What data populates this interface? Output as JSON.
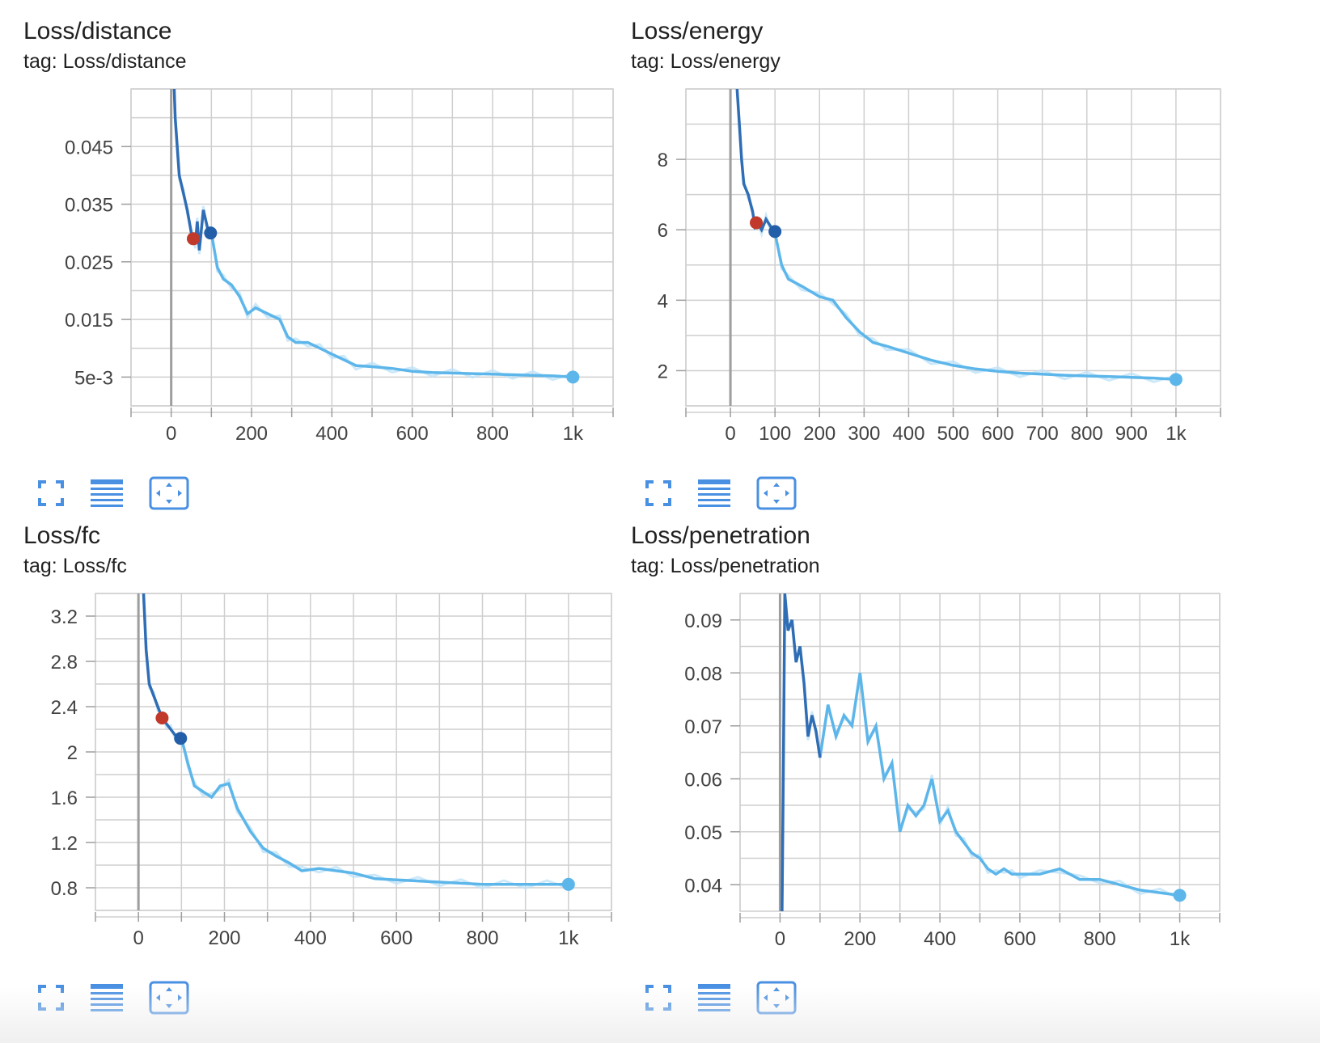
{
  "colors": {
    "smoothed_early": "#2f6db5",
    "smoothed_late": "#5db6ea",
    "raw": "#bfe2f7",
    "grid": "#cfcfcf",
    "axis": "#9e9e9e",
    "marker_red": "#c0392b",
    "marker_dark": "#225fa8",
    "toolbar": "#4a90e2"
  },
  "toolbar_icons": [
    "fullscreen-icon",
    "list-lines-icon",
    "fit-domain-icon"
  ],
  "charts": [
    {
      "title": "Loss/distance",
      "tag": "tag: Loss/distance"
    },
    {
      "title": "Loss/energy",
      "tag": "tag: Loss/energy"
    },
    {
      "title": "Loss/fc",
      "tag": "tag: Loss/fc"
    },
    {
      "title": "Loss/penetration",
      "tag": "tag: Loss/penetration"
    }
  ],
  "chart_data": [
    {
      "type": "line",
      "title": "Loss/distance",
      "xlabel": "",
      "ylabel": "",
      "xlim": [
        -100,
        1100
      ],
      "ylim": [
        0,
        0.055
      ],
      "xticks": [
        0,
        200,
        400,
        600,
        800,
        1000
      ],
      "xtick_labels": [
        "0",
        "200",
        "400",
        "600",
        "800",
        "1k"
      ],
      "yticks": [
        0.005,
        0.015,
        0.025,
        0.035,
        0.045
      ],
      "ytick_labels": [
        "5e-3",
        "0.015",
        "0.025",
        "0.035",
        "0.045"
      ],
      "grid": true,
      "series": [
        {
          "points": [
            [
              0,
              0.07
            ],
            [
              10,
              0.05
            ],
            [
              20,
              0.04
            ],
            [
              30,
              0.037
            ],
            [
              40,
              0.034
            ],
            [
              50,
              0.03
            ],
            [
              60,
              0.028
            ],
            [
              65,
              0.032
            ],
            [
              70,
              0.027
            ],
            [
              80,
              0.034
            ],
            [
              90,
              0.031
            ],
            [
              100,
              0.03
            ],
            [
              115,
              0.024
            ],
            [
              130,
              0.022
            ],
            [
              150,
              0.021
            ],
            [
              170,
              0.019
            ],
            [
              190,
              0.016
            ],
            [
              210,
              0.017
            ],
            [
              240,
              0.016
            ],
            [
              270,
              0.015
            ],
            [
              290,
              0.012
            ],
            [
              310,
              0.011
            ],
            [
              340,
              0.011
            ],
            [
              370,
              0.01
            ],
            [
              400,
              0.009
            ],
            [
              430,
              0.008
            ],
            [
              460,
              0.007
            ],
            [
              500,
              0.0068
            ],
            [
              550,
              0.0065
            ],
            [
              600,
              0.006
            ],
            [
              650,
              0.0058
            ],
            [
              700,
              0.0057
            ],
            [
              750,
              0.0056
            ],
            [
              800,
              0.0055
            ],
            [
              850,
              0.0054
            ],
            [
              900,
              0.0053
            ],
            [
              950,
              0.0052
            ],
            [
              1000,
              0.005
            ]
          ],
          "markers": [
            {
              "x": 55,
              "y": 0.029,
              "color": "red"
            },
            {
              "x": 98,
              "y": 0.03,
              "color": "dark"
            },
            {
              "x": 1000,
              "y": 0.005,
              "color": "light"
            }
          ]
        }
      ]
    },
    {
      "type": "line",
      "title": "Loss/energy",
      "xlabel": "",
      "ylabel": "",
      "xlim": [
        -100,
        1100
      ],
      "ylim": [
        1,
        10
      ],
      "xticks": [
        0,
        100,
        200,
        300,
        400,
        500,
        600,
        700,
        800,
        900,
        1000
      ],
      "xtick_labels": [
        "0",
        "100",
        "200",
        "300",
        "400",
        "500",
        "600",
        "700",
        "800",
        "900",
        "1k"
      ],
      "yticks": [
        2,
        4,
        6,
        8
      ],
      "ytick_labels": [
        "2",
        "4",
        "6",
        "8"
      ],
      "grid": true,
      "series": [
        {
          "points": [
            [
              15,
              10
            ],
            [
              20,
              9
            ],
            [
              25,
              8
            ],
            [
              30,
              7.3
            ],
            [
              40,
              7
            ],
            [
              50,
              6.5
            ],
            [
              55,
              6.1
            ],
            [
              60,
              6.2
            ],
            [
              70,
              6
            ],
            [
              80,
              6.3
            ],
            [
              90,
              6.1
            ],
            [
              100,
              5.9
            ],
            [
              115,
              5
            ],
            [
              130,
              4.6
            ],
            [
              160,
              4.4
            ],
            [
              200,
              4.1
            ],
            [
              230,
              4
            ],
            [
              260,
              3.5
            ],
            [
              290,
              3.1
            ],
            [
              320,
              2.8
            ],
            [
              350,
              2.7
            ],
            [
              400,
              2.5
            ],
            [
              450,
              2.3
            ],
            [
              500,
              2.15
            ],
            [
              550,
              2.05
            ],
            [
              600,
              1.98
            ],
            [
              650,
              1.93
            ],
            [
              700,
              1.9
            ],
            [
              750,
              1.87
            ],
            [
              800,
              1.85
            ],
            [
              850,
              1.83
            ],
            [
              900,
              1.81
            ],
            [
              950,
              1.79
            ],
            [
              1000,
              1.75
            ]
          ],
          "markers": [
            {
              "x": 58,
              "y": 6.2,
              "color": "red"
            },
            {
              "x": 100,
              "y": 5.95,
              "color": "dark"
            },
            {
              "x": 1000,
              "y": 1.75,
              "color": "light"
            }
          ]
        }
      ]
    },
    {
      "type": "line",
      "title": "Loss/fc",
      "xlabel": "",
      "ylabel": "",
      "xlim": [
        -100,
        1100
      ],
      "ylim": [
        0.6,
        3.4
      ],
      "xticks": [
        0,
        200,
        400,
        600,
        800,
        1000
      ],
      "xtick_labels": [
        "0",
        "200",
        "400",
        "600",
        "800",
        "1k"
      ],
      "yticks": [
        0.8,
        1.2,
        1.6,
        2,
        2.4,
        2.8,
        3.2
      ],
      "ytick_labels": [
        "0.8",
        "1.2",
        "1.6",
        "2",
        "2.4",
        "2.8",
        "3.2"
      ],
      "grid": true,
      "series": [
        {
          "points": [
            [
              12,
              3.4
            ],
            [
              18,
              2.9
            ],
            [
              25,
              2.6
            ],
            [
              35,
              2.5
            ],
            [
              45,
              2.4
            ],
            [
              55,
              2.3
            ],
            [
              65,
              2.25
            ],
            [
              75,
              2.2
            ],
            [
              85,
              2.15
            ],
            [
              100,
              2.12
            ],
            [
              115,
              1.9
            ],
            [
              130,
              1.7
            ],
            [
              150,
              1.65
            ],
            [
              170,
              1.6
            ],
            [
              190,
              1.7
            ],
            [
              210,
              1.72
            ],
            [
              230,
              1.5
            ],
            [
              260,
              1.3
            ],
            [
              290,
              1.15
            ],
            [
              320,
              1.08
            ],
            [
              350,
              1.02
            ],
            [
              380,
              0.95
            ],
            [
              420,
              0.97
            ],
            [
              460,
              0.95
            ],
            [
              500,
              0.93
            ],
            [
              550,
              0.88
            ],
            [
              600,
              0.87
            ],
            [
              650,
              0.86
            ],
            [
              700,
              0.85
            ],
            [
              750,
              0.84
            ],
            [
              800,
              0.83
            ],
            [
              850,
              0.83
            ],
            [
              900,
              0.83
            ],
            [
              950,
              0.83
            ],
            [
              1000,
              0.83
            ]
          ],
          "markers": [
            {
              "x": 55,
              "y": 2.3,
              "color": "red"
            },
            {
              "x": 98,
              "y": 2.12,
              "color": "dark"
            },
            {
              "x": 1000,
              "y": 0.83,
              "color": "light"
            }
          ]
        }
      ]
    },
    {
      "type": "line",
      "title": "Loss/penetration",
      "xlabel": "",
      "ylabel": "",
      "xlim": [
        -100,
        1100
      ],
      "ylim": [
        0.035,
        0.095
      ],
      "xticks": [
        0,
        200,
        400,
        600,
        800,
        1000
      ],
      "xtick_labels": [
        "0",
        "200",
        "400",
        "600",
        "800",
        "1k"
      ],
      "yticks": [
        0.04,
        0.05,
        0.06,
        0.07,
        0.08,
        0.09
      ],
      "ytick_labels": [
        "0.04",
        "0.05",
        "0.06",
        "0.07",
        "0.08",
        "0.09"
      ],
      "grid": true,
      "series": [
        {
          "points": [
            [
              5,
              0.035
            ],
            [
              8,
              0.06
            ],
            [
              12,
              0.095
            ],
            [
              20,
              0.088
            ],
            [
              30,
              0.09
            ],
            [
              40,
              0.082
            ],
            [
              50,
              0.085
            ],
            [
              60,
              0.078
            ],
            [
              70,
              0.068
            ],
            [
              80,
              0.072
            ],
            [
              90,
              0.069
            ],
            [
              100,
              0.064
            ],
            [
              120,
              0.074
            ],
            [
              140,
              0.068
            ],
            [
              160,
              0.072
            ],
            [
              180,
              0.07
            ],
            [
              200,
              0.08
            ],
            [
              220,
              0.067
            ],
            [
              240,
              0.07
            ],
            [
              260,
              0.06
            ],
            [
              280,
              0.063
            ],
            [
              300,
              0.05
            ],
            [
              320,
              0.055
            ],
            [
              340,
              0.053
            ],
            [
              360,
              0.055
            ],
            [
              380,
              0.06
            ],
            [
              400,
              0.052
            ],
            [
              420,
              0.054
            ],
            [
              440,
              0.05
            ],
            [
              460,
              0.048
            ],
            [
              480,
              0.046
            ],
            [
              500,
              0.045
            ],
            [
              520,
              0.043
            ],
            [
              540,
              0.042
            ],
            [
              560,
              0.043
            ],
            [
              580,
              0.042
            ],
            [
              600,
              0.042
            ],
            [
              650,
              0.042
            ],
            [
              700,
              0.043
            ],
            [
              750,
              0.041
            ],
            [
              800,
              0.041
            ],
            [
              850,
              0.04
            ],
            [
              900,
              0.039
            ],
            [
              950,
              0.0385
            ],
            [
              1000,
              0.038
            ]
          ],
          "markers": [
            {
              "x": 1000,
              "y": 0.038,
              "color": "light"
            }
          ]
        }
      ]
    }
  ]
}
